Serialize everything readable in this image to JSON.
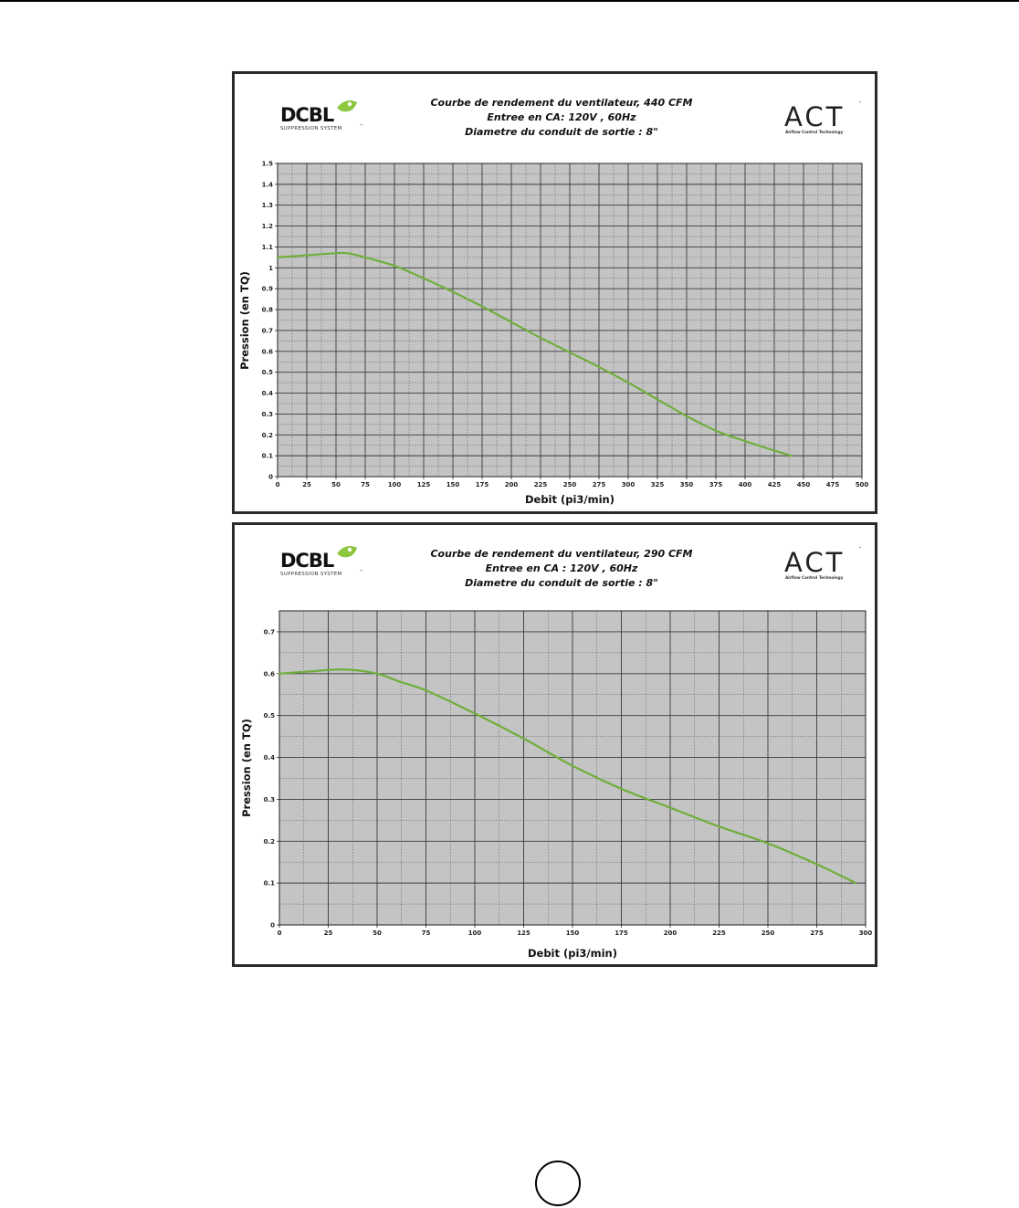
{
  "colors": {
    "plot_background": "#c4c4c4",
    "grid": "#3a3a3a",
    "curve": "#6fae3c",
    "logo_leaf": "#8dc63f",
    "frame": "#2a2a2a"
  },
  "logos": {
    "dcbl": {
      "text": "DCBL",
      "subtitle": "SUPPRESSION SYSTEM",
      "trademark": "™"
    },
    "act": {
      "text": "ACT",
      "subtitle": "Airflow Control Technology",
      "trademark": "™"
    }
  },
  "chart_data": [
    {
      "type": "line",
      "title_lines": [
        "Courbe de rendement du ventilateur, 440 CFM",
        "Entree en CA: 120V , 60Hz",
        "Diametre du conduit de sortie : 8\""
      ],
      "xlabel": "Debit (pi3/min)",
      "ylabel": "Pression (en TQ)",
      "xlim": [
        0,
        500
      ],
      "ylim": [
        0,
        1.5
      ],
      "x_ticks": [
        0,
        25,
        50,
        75,
        100,
        125,
        150,
        175,
        200,
        225,
        250,
        275,
        300,
        325,
        350,
        375,
        400,
        425,
        450,
        475,
        500
      ],
      "y_ticks": [
        0,
        0.1,
        0.2,
        0.3,
        0.4,
        0.5,
        0.6,
        0.7,
        0.8,
        0.9,
        1,
        1.1,
        1.2,
        1.3,
        1.4,
        1.5
      ],
      "grid": true,
      "series": [
        {
          "x": [
            0,
            25,
            50,
            60,
            75,
            100,
            125,
            150,
            175,
            200,
            225,
            250,
            275,
            300,
            325,
            350,
            375,
            400,
            425,
            440
          ],
          "y": [
            1.05,
            1.06,
            1.07,
            1.07,
            1.05,
            1.01,
            0.95,
            0.885,
            0.815,
            0.74,
            0.665,
            0.595,
            0.525,
            0.45,
            0.37,
            0.29,
            0.22,
            0.17,
            0.125,
            0.1
          ]
        }
      ]
    },
    {
      "type": "line",
      "title_lines": [
        "Courbe de rendement du ventilateur, 290 CFM",
        "Entree en CA : 120V , 60Hz",
        "Diametre du conduit de sortie : 8\""
      ],
      "xlabel": "Debit (pi3/min)",
      "ylabel": "Pression (en TQ)",
      "xlim": [
        0,
        300
      ],
      "ylim": [
        0,
        0.75
      ],
      "x_ticks": [
        0,
        25,
        50,
        75,
        100,
        125,
        150,
        175,
        200,
        225,
        250,
        275,
        300
      ],
      "y_ticks": [
        0,
        0.1,
        0.2,
        0.3,
        0.4,
        0.5,
        0.6,
        0.7
      ],
      "grid": true,
      "series": [
        {
          "x": [
            0,
            15,
            33,
            50,
            62,
            75,
            100,
            125,
            150,
            175,
            200,
            225,
            250,
            275,
            295
          ],
          "y": [
            0.6,
            0.605,
            0.61,
            0.6,
            0.58,
            0.56,
            0.505,
            0.445,
            0.38,
            0.325,
            0.28,
            0.235,
            0.195,
            0.145,
            0.1
          ]
        }
      ]
    }
  ]
}
